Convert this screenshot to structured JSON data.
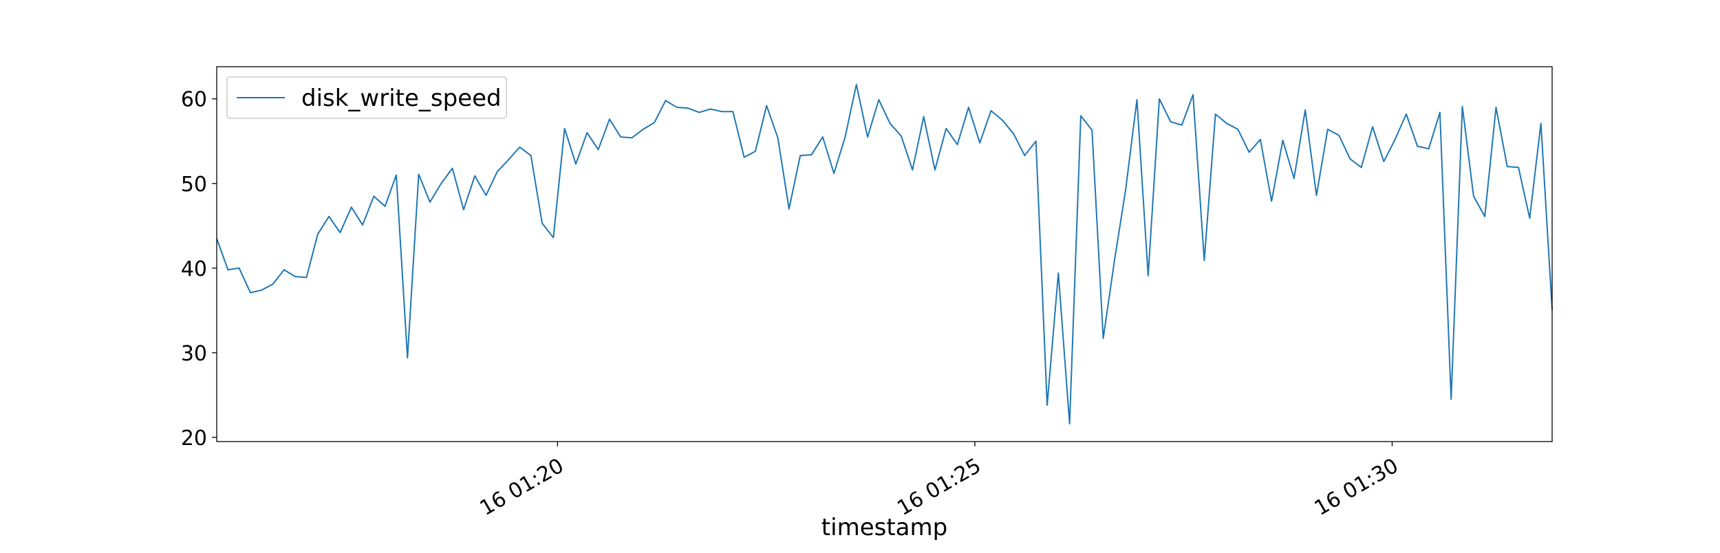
{
  "chart_data": {
    "type": "line",
    "title": "",
    "xlabel": "timestamp",
    "ylabel": "",
    "x_start": "16 01:15:55",
    "x_end": "16 01:31:55",
    "xlim": [
      "16 01:15:55",
      "16 01:31:55"
    ],
    "ylim": [
      19.5,
      63.8
    ],
    "grid": false,
    "legend_position": "upper left",
    "x_ticks": [
      {
        "value": "16 01:20:00",
        "label": "16 01:20"
      },
      {
        "value": "16 01:25:00",
        "label": "16 01:25"
      },
      {
        "value": "16 01:30:00",
        "label": "16 01:30"
      }
    ],
    "y_ticks": [
      20,
      30,
      40,
      50,
      60
    ],
    "series": [
      {
        "name": "disk_write_speed",
        "color": "#1f77b4",
        "values": [
          43.5,
          39.8,
          40.0,
          37.1,
          37.4,
          38.1,
          39.8,
          39.0,
          38.9,
          44.0,
          46.1,
          44.2,
          47.2,
          45.1,
          48.5,
          47.3,
          51.0,
          29.4,
          51.1,
          47.8,
          50.0,
          51.8,
          46.9,
          50.9,
          48.6,
          51.4,
          52.8,
          54.3,
          53.3,
          45.3,
          43.6,
          56.5,
          52.3,
          56.0,
          54.0,
          57.6,
          55.5,
          55.4,
          56.4,
          57.2,
          59.8,
          59.0,
          58.9,
          58.4,
          58.8,
          58.5,
          58.5,
          53.1,
          53.8,
          59.2,
          55.4,
          47.0,
          53.3,
          53.4,
          55.5,
          51.2,
          55.5,
          61.7,
          55.5,
          59.9,
          57.1,
          55.6,
          51.6,
          57.9,
          51.6,
          56.5,
          54.6,
          59.0,
          54.8,
          58.6,
          57.5,
          55.9,
          53.3,
          55.0,
          23.8,
          39.4,
          21.6,
          58.0,
          56.3,
          31.7,
          40.9,
          49.3,
          59.9,
          39.1,
          60.0,
          57.3,
          56.9,
          60.5,
          40.9,
          58.2,
          57.1,
          56.4,
          53.7,
          55.2,
          47.9,
          55.1,
          50.6,
          58.7,
          48.6,
          56.4,
          55.7,
          52.9,
          51.9,
          56.7,
          52.6,
          55.2,
          58.2,
          54.4,
          54.1,
          58.4,
          24.5,
          59.1,
          48.5,
          46.1,
          59.0,
          52.0,
          51.9,
          45.9,
          57.1,
          35.1
        ]
      }
    ]
  }
}
